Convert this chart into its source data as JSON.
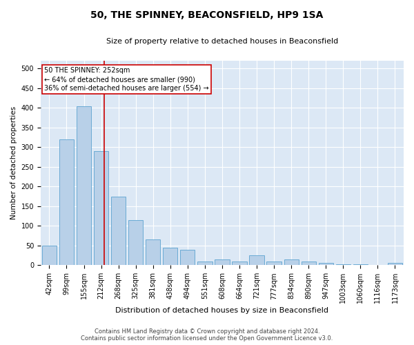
{
  "title": "50, THE SPINNEY, BEACONSFIELD, HP9 1SA",
  "subtitle": "Size of property relative to detached houses in Beaconsfield",
  "xlabel": "Distribution of detached houses by size in Beaconsfield",
  "ylabel": "Number of detached properties",
  "footer_line1": "Contains HM Land Registry data © Crown copyright and database right 2024.",
  "footer_line2": "Contains public sector information licensed under the Open Government Licence v3.0.",
  "categories": [
    "42sqm",
    "99sqm",
    "155sqm",
    "212sqm",
    "268sqm",
    "325sqm",
    "381sqm",
    "438sqm",
    "494sqm",
    "551sqm",
    "608sqm",
    "664sqm",
    "721sqm",
    "777sqm",
    "834sqm",
    "890sqm",
    "947sqm",
    "1003sqm",
    "1060sqm",
    "1116sqm",
    "1173sqm"
  ],
  "values": [
    50,
    320,
    405,
    290,
    175,
    115,
    65,
    45,
    40,
    10,
    15,
    10,
    25,
    10,
    15,
    10,
    5,
    2,
    2,
    1,
    5
  ],
  "bar_color": "#b8d0e8",
  "bar_edge_color": "#6aaad4",
  "background_color": "#dce8f5",
  "grid_color": "#ffffff",
  "marker_color": "#cc0000",
  "box_edge_color": "#cc0000",
  "marker_label": "50 THE SPINNEY: 252sqm",
  "marker_line1": "← 64% of detached houses are smaller (990)",
  "marker_line2": "36% of semi-detached houses are larger (554) →",
  "ylim": [
    0,
    520
  ],
  "yticks": [
    0,
    50,
    100,
    150,
    200,
    250,
    300,
    350,
    400,
    450,
    500
  ],
  "title_fontsize": 10,
  "subtitle_fontsize": 8,
  "ylabel_fontsize": 7.5,
  "xlabel_fontsize": 8,
  "tick_fontsize": 7,
  "annotation_fontsize": 7,
  "footer_fontsize": 6
}
